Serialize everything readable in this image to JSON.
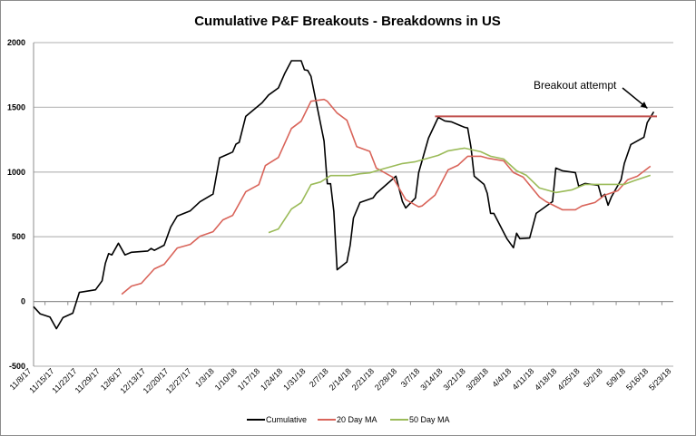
{
  "chart_data": {
    "type": "line",
    "title": "Cumulative P&F Breakouts - Breakdowns in US",
    "xlabel": "",
    "ylabel": "",
    "ylim": [
      -500,
      2000
    ],
    "yticks": [
      2000,
      1500,
      1000,
      500,
      0,
      -500
    ],
    "xlim": [
      "2017-11-08",
      "2018-05-23"
    ],
    "xtick_labels": [
      "11/8/17",
      "11/15/17",
      "11/22/17",
      "11/29/17",
      "12/6/17",
      "12/13/17",
      "12/20/17",
      "12/27/17",
      "1/3/18",
      "1/10/18",
      "1/17/18",
      "1/24/18",
      "1/31/18",
      "2/7/18",
      "2/14/18",
      "2/21/18",
      "2/28/18",
      "3/7/18",
      "3/14/18",
      "3/21/18",
      "3/28/18",
      "4/4/18",
      "4/11/18",
      "4/18/18",
      "4/25/18",
      "5/2/18",
      "5/9/18",
      "5/16/18",
      "5/23/18"
    ],
    "grid": true,
    "legend_placement": "bottom",
    "series": [
      {
        "name": "Cumulative",
        "color": "#000000",
        "points": [
          [
            "2017-11-08",
            -40
          ],
          [
            "2017-11-10",
            -95
          ],
          [
            "2017-11-13",
            -120
          ],
          [
            "2017-11-15",
            -210
          ],
          [
            "2017-11-17",
            -125
          ],
          [
            "2017-11-20",
            -90
          ],
          [
            "2017-11-22",
            70
          ],
          [
            "2017-11-27",
            90
          ],
          [
            "2017-11-29",
            160
          ],
          [
            "2017-11-30",
            295
          ],
          [
            "2017-12-01",
            370
          ],
          [
            "2017-12-02",
            360
          ],
          [
            "2017-12-04",
            450
          ],
          [
            "2017-12-06",
            360
          ],
          [
            "2017-12-08",
            380
          ],
          [
            "2017-12-13",
            390
          ],
          [
            "2017-12-14",
            410
          ],
          [
            "2017-12-15",
            395
          ],
          [
            "2017-12-18",
            435
          ],
          [
            "2017-12-20",
            575
          ],
          [
            "2017-12-22",
            660
          ],
          [
            "2017-12-26",
            700
          ],
          [
            "2017-12-29",
            770
          ],
          [
            "2018-01-02",
            830
          ],
          [
            "2018-01-04",
            1110
          ],
          [
            "2018-01-08",
            1155
          ],
          [
            "2018-01-09",
            1215
          ],
          [
            "2018-01-10",
            1230
          ],
          [
            "2018-01-12",
            1430
          ],
          [
            "2018-01-17",
            1535
          ],
          [
            "2018-01-19",
            1595
          ],
          [
            "2018-01-22",
            1650
          ],
          [
            "2018-01-24",
            1765
          ],
          [
            "2018-01-26",
            1860
          ],
          [
            "2018-01-29",
            1860
          ],
          [
            "2018-01-30",
            1790
          ],
          [
            "2018-01-31",
            1785
          ],
          [
            "2018-02-01",
            1740
          ],
          [
            "2018-02-05",
            1240
          ],
          [
            "2018-02-06",
            910
          ],
          [
            "2018-02-07",
            910
          ],
          [
            "2018-02-08",
            695
          ],
          [
            "2018-02-09",
            245
          ],
          [
            "2018-02-12",
            305
          ],
          [
            "2018-02-13",
            435
          ],
          [
            "2018-02-14",
            645
          ],
          [
            "2018-02-16",
            765
          ],
          [
            "2018-02-20",
            800
          ],
          [
            "2018-02-21",
            835
          ],
          [
            "2018-02-27",
            968
          ],
          [
            "2018-03-01",
            772
          ],
          [
            "2018-03-02",
            723
          ],
          [
            "2018-03-05",
            800
          ],
          [
            "2018-03-06",
            996
          ],
          [
            "2018-03-09",
            1262
          ],
          [
            "2018-03-12",
            1423
          ],
          [
            "2018-03-14",
            1395
          ],
          [
            "2018-03-16",
            1388
          ],
          [
            "2018-03-20",
            1346
          ],
          [
            "2018-03-21",
            1340
          ],
          [
            "2018-03-22",
            1192
          ],
          [
            "2018-03-23",
            968
          ],
          [
            "2018-03-26",
            905
          ],
          [
            "2018-03-27",
            835
          ],
          [
            "2018-03-28",
            681
          ],
          [
            "2018-03-29",
            681
          ],
          [
            "2018-04-02",
            485
          ],
          [
            "2018-04-04",
            415
          ],
          [
            "2018-04-05",
            527
          ],
          [
            "2018-04-06",
            485
          ],
          [
            "2018-04-09",
            490
          ],
          [
            "2018-04-11",
            681
          ],
          [
            "2018-04-16",
            772
          ],
          [
            "2018-04-17",
            1031
          ],
          [
            "2018-04-19",
            1010
          ],
          [
            "2018-04-23",
            996
          ],
          [
            "2018-04-24",
            891
          ],
          [
            "2018-04-26",
            912
          ],
          [
            "2018-04-30",
            898
          ],
          [
            "2018-05-01",
            807
          ],
          [
            "2018-05-02",
            828
          ],
          [
            "2018-05-03",
            744
          ],
          [
            "2018-05-04",
            807
          ],
          [
            "2018-05-07",
            940
          ],
          [
            "2018-05-08",
            1066
          ],
          [
            "2018-05-10",
            1213
          ],
          [
            "2018-05-14",
            1269
          ],
          [
            "2018-05-15",
            1381
          ],
          [
            "2018-05-17",
            1465
          ]
        ]
      },
      {
        "name": "20 Day MA",
        "color": "#d9645a",
        "points": [
          [
            "2017-12-05",
            56
          ],
          [
            "2017-12-08",
            119
          ],
          [
            "2017-12-11",
            140
          ],
          [
            "2017-12-15",
            252
          ],
          [
            "2017-12-18",
            287
          ],
          [
            "2017-12-22",
            413
          ],
          [
            "2017-12-26",
            441
          ],
          [
            "2017-12-29",
            504
          ],
          [
            "2018-01-02",
            539
          ],
          [
            "2018-01-05",
            630
          ],
          [
            "2018-01-08",
            665
          ],
          [
            "2018-01-12",
            847
          ],
          [
            "2018-01-16",
            903
          ],
          [
            "2018-01-18",
            1050
          ],
          [
            "2018-01-22",
            1113
          ],
          [
            "2018-01-26",
            1337
          ],
          [
            "2018-01-29",
            1393
          ],
          [
            "2018-02-01",
            1547
          ],
          [
            "2018-02-05",
            1561
          ],
          [
            "2018-02-06",
            1547
          ],
          [
            "2018-02-09",
            1456
          ],
          [
            "2018-02-12",
            1400
          ],
          [
            "2018-02-15",
            1197
          ],
          [
            "2018-02-19",
            1160
          ],
          [
            "2018-02-21",
            1031
          ],
          [
            "2018-02-26",
            961
          ],
          [
            "2018-03-02",
            787
          ],
          [
            "2018-03-06",
            731
          ],
          [
            "2018-03-07",
            738
          ],
          [
            "2018-03-11",
            822
          ],
          [
            "2018-03-15",
            1017
          ],
          [
            "2018-03-18",
            1052
          ],
          [
            "2018-03-21",
            1122
          ],
          [
            "2018-03-25",
            1122
          ],
          [
            "2018-03-27",
            1108
          ],
          [
            "2018-04-01",
            1087
          ],
          [
            "2018-04-04",
            996
          ],
          [
            "2018-04-07",
            961
          ],
          [
            "2018-04-12",
            807
          ],
          [
            "2018-04-14",
            772
          ],
          [
            "2018-04-19",
            709
          ],
          [
            "2018-04-23",
            709
          ],
          [
            "2018-04-25",
            738
          ],
          [
            "2018-04-29",
            765
          ],
          [
            "2018-05-02",
            822
          ],
          [
            "2018-05-06",
            856
          ],
          [
            "2018-05-09",
            940
          ],
          [
            "2018-05-12",
            968
          ],
          [
            "2018-05-16",
            1045
          ]
        ]
      },
      {
        "name": "50 Day MA",
        "color": "#9bbb59",
        "points": [
          [
            "2018-01-19",
            532
          ],
          [
            "2018-01-22",
            560
          ],
          [
            "2018-01-26",
            714
          ],
          [
            "2018-01-29",
            763
          ],
          [
            "2018-02-01",
            903
          ],
          [
            "2018-02-04",
            924
          ],
          [
            "2018-02-07",
            973
          ],
          [
            "2018-02-13",
            973
          ],
          [
            "2018-02-16",
            987
          ],
          [
            "2018-02-19",
            994
          ],
          [
            "2018-02-23",
            1024
          ],
          [
            "2018-03-01",
            1066
          ],
          [
            "2018-03-05",
            1080
          ],
          [
            "2018-03-12",
            1129
          ],
          [
            "2018-03-15",
            1164
          ],
          [
            "2018-03-20",
            1185
          ],
          [
            "2018-03-25",
            1157
          ],
          [
            "2018-03-28",
            1122
          ],
          [
            "2018-04-01",
            1101
          ],
          [
            "2018-04-05",
            1010
          ],
          [
            "2018-04-08",
            975
          ],
          [
            "2018-04-12",
            877
          ],
          [
            "2018-04-17",
            842
          ],
          [
            "2018-04-22",
            863
          ],
          [
            "2018-04-26",
            905
          ],
          [
            "2018-05-08",
            905
          ],
          [
            "2018-05-11",
            933
          ],
          [
            "2018-05-16",
            975
          ]
        ]
      }
    ],
    "reference_line": {
      "value": 1430,
      "from": "2018-03-11",
      "to": "2018-05-18",
      "color": "#c0504d"
    },
    "annotation": {
      "text": "Breakout attempt",
      "target": [
        "2018-05-17",
        1465
      ]
    }
  }
}
